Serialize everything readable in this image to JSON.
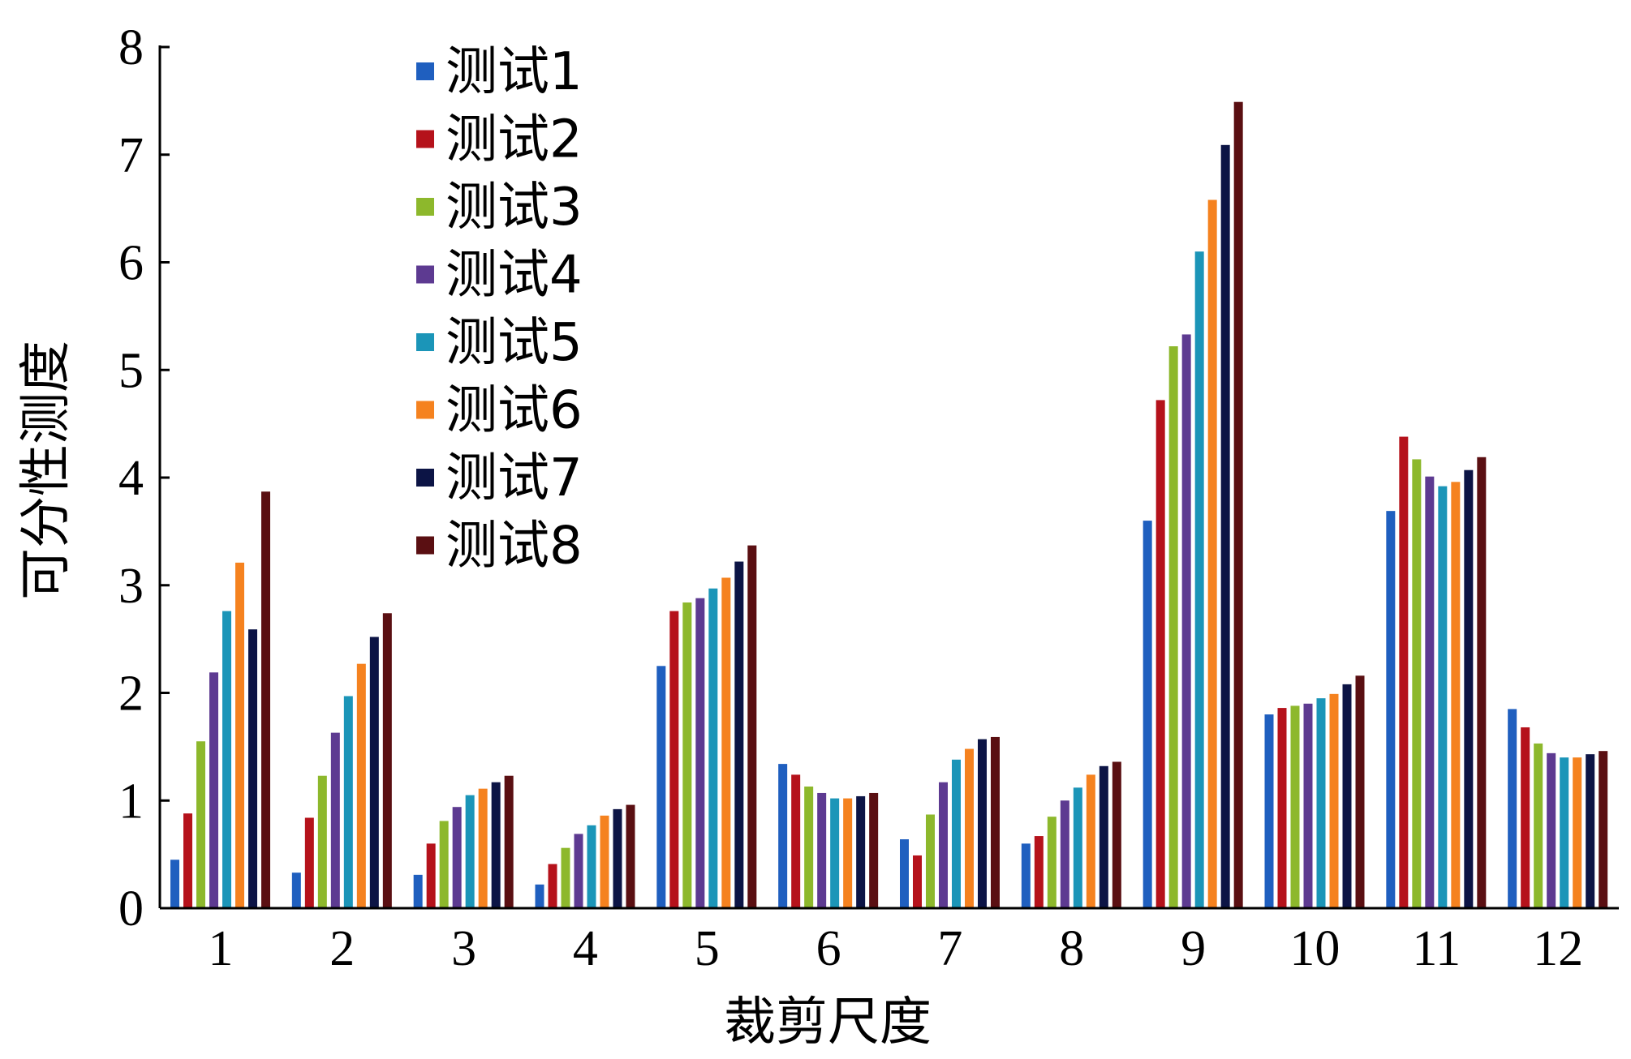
{
  "chart_data": {
    "type": "bar",
    "xlabel": "裁剪尺度",
    "ylabel": "可分性测度",
    "ylim": [
      0,
      8
    ],
    "yticks": [
      "0",
      "1",
      "2",
      "3",
      "4",
      "5",
      "6",
      "7",
      "8"
    ],
    "categories": [
      "1",
      "2",
      "3",
      "4",
      "5",
      "6",
      "7",
      "8",
      "9",
      "10",
      "11",
      "12"
    ],
    "legend_position": "top-left",
    "grid": false,
    "series": [
      {
        "name": "测试1",
        "color": "#1f5fbf",
        "values": [
          0.45,
          0.33,
          0.31,
          0.22,
          2.25,
          1.34,
          0.64,
          0.6,
          3.6,
          1.8,
          3.69,
          1.85
        ]
      },
      {
        "name": "测试2",
        "color": "#b5121b",
        "values": [
          0.88,
          0.84,
          0.6,
          0.41,
          2.76,
          1.24,
          0.49,
          0.67,
          4.72,
          1.86,
          4.38,
          1.68
        ]
      },
      {
        "name": "测试3",
        "color": "#8db82c",
        "values": [
          1.55,
          1.23,
          0.81,
          0.56,
          2.84,
          1.13,
          0.87,
          0.85,
          5.22,
          1.88,
          4.17,
          1.53
        ]
      },
      {
        "name": "测试4",
        "color": "#5d3a91",
        "values": [
          2.19,
          1.63,
          0.94,
          0.69,
          2.88,
          1.07,
          1.17,
          1.0,
          5.33,
          1.9,
          4.01,
          1.44
        ]
      },
      {
        "name": "测试5",
        "color": "#1b95b8",
        "values": [
          2.76,
          1.97,
          1.05,
          0.77,
          2.97,
          1.02,
          1.38,
          1.12,
          6.1,
          1.95,
          3.92,
          1.4
        ]
      },
      {
        "name": "测试6",
        "color": "#f5821f",
        "values": [
          3.21,
          2.27,
          1.11,
          0.86,
          3.07,
          1.02,
          1.48,
          1.24,
          6.58,
          1.99,
          3.96,
          1.4
        ]
      },
      {
        "name": "测试7",
        "color": "#0c1445",
        "values": [
          2.59,
          2.52,
          1.17,
          0.92,
          3.22,
          1.04,
          1.57,
          1.32,
          7.09,
          2.08,
          4.07,
          1.43
        ]
      },
      {
        "name": "测试8",
        "color": "#5a0f12",
        "values": [
          3.87,
          2.74,
          1.23,
          0.96,
          3.37,
          1.07,
          1.59,
          1.36,
          7.49,
          2.16,
          4.19,
          1.46
        ]
      }
    ]
  }
}
